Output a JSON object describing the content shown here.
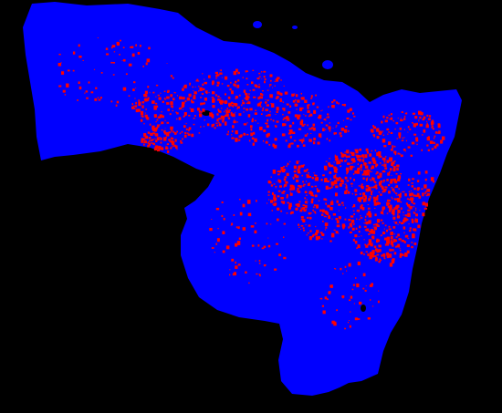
{
  "map": {
    "background_color": "#000000",
    "land_color": "#0000ff",
    "hotspot_color": "#ff0000",
    "legend": []
  }
}
